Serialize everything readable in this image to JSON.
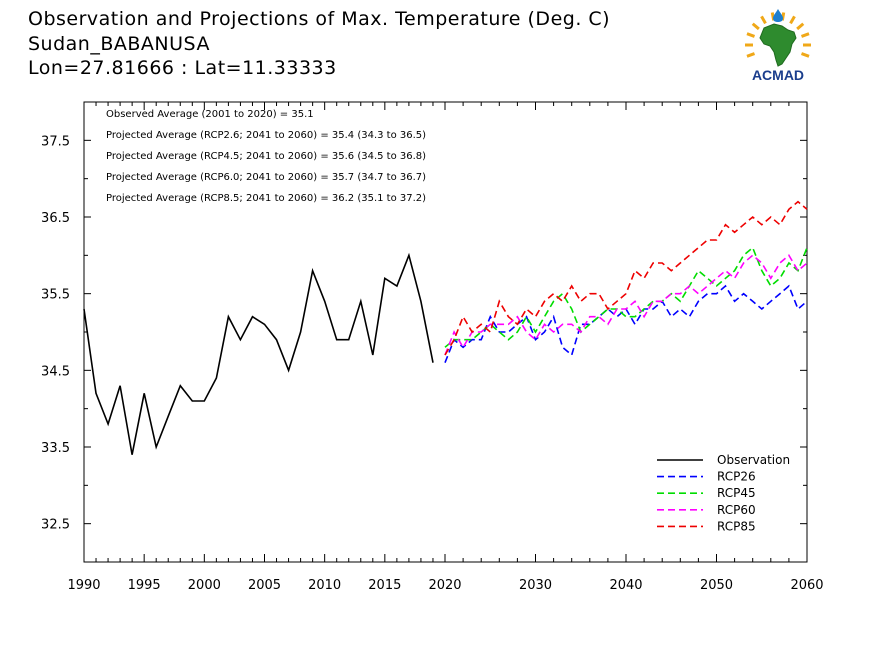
{
  "header": {
    "title": "Observation and Projections of Max. Temperature (Deg. C)",
    "location": "Sudan_BABANUSA",
    "coords": "Lon=27.81666 : Lat=11.33333"
  },
  "logo": {
    "text": "ACMAD",
    "icon": "africa-sun-logo",
    "colors": {
      "continent": "#2e8b2e",
      "sun": "#f0a818",
      "text": "#1a3d8c",
      "drop": "#1e7fd0"
    }
  },
  "annotations": [
    "Observed Average (2001 to 2020) = 35.1",
    "Projected Average (RCP2.6; 2041 to 2060) = 35.4 (34.3 to 36.5)",
    "Projected Average (RCP4.5; 2041 to 2060) = 35.6 (34.5 to 36.8)",
    "Projected Average (RCP6.0; 2041 to 2060) = 35.7 (34.7 to 36.7)",
    "Projected Average (RCP8.5; 2041 to 2060) = 36.2 (35.1 to 37.2)"
  ],
  "legend": [
    {
      "name": "Observation",
      "color": "#000000",
      "dashed": false
    },
    {
      "name": "RCP26",
      "color": "#0000ff",
      "dashed": true
    },
    {
      "name": "RCP45",
      "color": "#00dd00",
      "dashed": true
    },
    {
      "name": "RCP60",
      "color": "#ff00ff",
      "dashed": true
    },
    {
      "name": "RCP85",
      "color": "#ee0000",
      "dashed": true
    }
  ],
  "chart_data": {
    "type": "line",
    "title": "Observation and Projections of Max. Temperature (Deg. C)",
    "xlabel": "",
    "ylabel": "",
    "xlim": [
      1990,
      2060
    ],
    "ylim": [
      32.0,
      38.0
    ],
    "x_ticks_left": [
      "1990",
      "1995",
      "2000",
      "2005",
      "2010",
      "2015",
      "2020"
    ],
    "x_ticks_right": [
      "2030",
      "2040",
      "2050",
      "2060"
    ],
    "y_ticks": [
      "32.5",
      "33.5",
      "34.5",
      "35.5",
      "36.5",
      "37.5"
    ],
    "legend_position": "bottom-right",
    "grid": false,
    "series": [
      {
        "name": "Observation",
        "color": "#000000",
        "dashed": false,
        "x": [
          1990,
          1991,
          1992,
          1993,
          1994,
          1995,
          1996,
          1997,
          1998,
          1999,
          2000,
          2001,
          2002,
          2003,
          2004,
          2005,
          2006,
          2007,
          2008,
          2009,
          2010,
          2011,
          2012,
          2013,
          2014,
          2015,
          2016,
          2017,
          2018,
          2019,
          2020
        ],
        "values": [
          35.3,
          34.2,
          33.8,
          34.3,
          33.4,
          34.2,
          33.5,
          33.9,
          34.3,
          34.1,
          34.1,
          34.4,
          35.2,
          34.9,
          35.2,
          35.1,
          34.9,
          34.5,
          35.0,
          35.8,
          35.4,
          34.9,
          34.9,
          35.4,
          34.7,
          35.7,
          35.6,
          36.0,
          35.4,
          34.6,
          null
        ]
      },
      {
        "name": "RCP26",
        "color": "#0000ff",
        "dashed": true,
        "x": [
          2020,
          2021,
          2022,
          2023,
          2024,
          2025,
          2026,
          2027,
          2028,
          2029,
          2030,
          2031,
          2032,
          2033,
          2034,
          2035,
          2036,
          2037,
          2038,
          2039,
          2040,
          2041,
          2042,
          2043,
          2044,
          2045,
          2046,
          2047,
          2048,
          2049,
          2050,
          2051,
          2052,
          2053,
          2054,
          2055,
          2056,
          2057,
          2058,
          2059,
          2060
        ],
        "values": [
          34.6,
          34.9,
          34.8,
          34.9,
          34.9,
          35.2,
          35.0,
          35.0,
          35.1,
          35.2,
          34.9,
          35.0,
          35.2,
          34.8,
          34.7,
          35.1,
          35.1,
          35.2,
          35.3,
          35.2,
          35.3,
          35.1,
          35.3,
          35.3,
          35.4,
          35.2,
          35.3,
          35.2,
          35.4,
          35.5,
          35.5,
          35.6,
          35.4,
          35.5,
          35.4,
          35.3,
          35.4,
          35.5,
          35.6,
          35.3,
          35.4
        ]
      },
      {
        "name": "RCP45",
        "color": "#00dd00",
        "dashed": true,
        "x": [
          2020,
          2021,
          2022,
          2023,
          2024,
          2025,
          2026,
          2027,
          2028,
          2029,
          2030,
          2031,
          2032,
          2033,
          2034,
          2035,
          2036,
          2037,
          2038,
          2039,
          2040,
          2041,
          2042,
          2043,
          2044,
          2045,
          2046,
          2047,
          2048,
          2049,
          2050,
          2051,
          2052,
          2053,
          2054,
          2055,
          2056,
          2057,
          2058,
          2059,
          2060
        ],
        "values": [
          34.8,
          34.9,
          34.9,
          34.9,
          35.0,
          35.1,
          35.0,
          34.9,
          35.0,
          35.2,
          35.0,
          35.2,
          35.4,
          35.5,
          35.3,
          35.0,
          35.1,
          35.2,
          35.3,
          35.3,
          35.2,
          35.2,
          35.3,
          35.4,
          35.4,
          35.5,
          35.4,
          35.6,
          35.8,
          35.7,
          35.6,
          35.7,
          35.8,
          36.0,
          36.1,
          35.8,
          35.6,
          35.7,
          35.9,
          35.8,
          36.1
        ]
      },
      {
        "name": "RCP60",
        "color": "#ff00ff",
        "dashed": true,
        "x": [
          2020,
          2021,
          2022,
          2023,
          2024,
          2025,
          2026,
          2027,
          2028,
          2029,
          2030,
          2031,
          2032,
          2033,
          2034,
          2035,
          2036,
          2037,
          2038,
          2039,
          2040,
          2041,
          2042,
          2043,
          2044,
          2045,
          2046,
          2047,
          2048,
          2049,
          2050,
          2051,
          2052,
          2053,
          2054,
          2055,
          2056,
          2057,
          2058,
          2059,
          2060
        ],
        "values": [
          34.7,
          35.0,
          34.8,
          35.0,
          35.0,
          35.1,
          35.1,
          35.1,
          35.2,
          35.0,
          34.9,
          35.1,
          35.0,
          35.1,
          35.1,
          35.0,
          35.2,
          35.2,
          35.1,
          35.3,
          35.3,
          35.4,
          35.2,
          35.4,
          35.4,
          35.5,
          35.5,
          35.6,
          35.5,
          35.6,
          35.7,
          35.8,
          35.7,
          35.9,
          36.0,
          35.9,
          35.7,
          35.9,
          36.0,
          35.8,
          35.9
        ]
      },
      {
        "name": "RCP85",
        "color": "#ee0000",
        "dashed": true,
        "x": [
          2020,
          2021,
          2022,
          2023,
          2024,
          2025,
          2026,
          2027,
          2028,
          2029,
          2030,
          2031,
          2032,
          2033,
          2034,
          2035,
          2036,
          2037,
          2038,
          2039,
          2040,
          2041,
          2042,
          2043,
          2044,
          2045,
          2046,
          2047,
          2048,
          2049,
          2050,
          2051,
          2052,
          2053,
          2054,
          2055,
          2056,
          2057,
          2058,
          2059,
          2060
        ],
        "values": [
          34.7,
          34.9,
          35.2,
          35.0,
          35.1,
          35.0,
          35.4,
          35.2,
          35.1,
          35.3,
          35.2,
          35.4,
          35.5,
          35.4,
          35.6,
          35.4,
          35.5,
          35.5,
          35.3,
          35.4,
          35.5,
          35.8,
          35.7,
          35.9,
          35.9,
          35.8,
          35.9,
          36.0,
          36.1,
          36.2,
          36.2,
          36.4,
          36.3,
          36.4,
          36.5,
          36.4,
          36.5,
          36.4,
          36.6,
          36.7,
          36.6
        ]
      }
    ]
  }
}
